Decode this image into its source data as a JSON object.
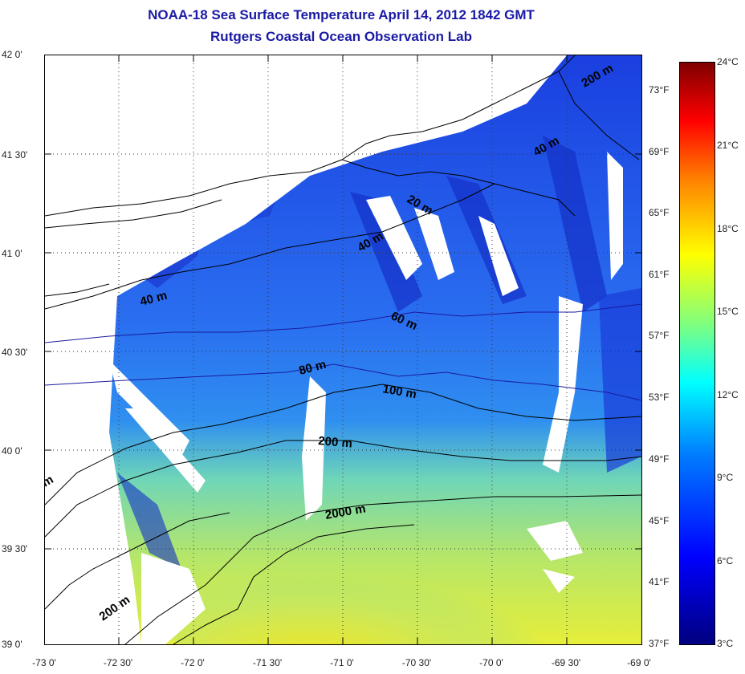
{
  "title": {
    "line1": "NOAA-18 Sea Surface Temperature April 14, 2012 1842 GMT",
    "line2": "Rutgers Coastal Ocean Observation Lab"
  },
  "lat_labels": [
    "42 0'",
    "41 30'",
    "41 0'",
    "40 30'",
    "40 0'",
    "39 30'",
    "39 0'"
  ],
  "lon_labels": [
    "-73 0'",
    "-72 30'",
    "-72 0'",
    "-71 30'",
    "-71 0'",
    "-70 30'",
    "-70 0'",
    "-69 30'",
    "-69 0'"
  ],
  "fahrenheit_labels": [
    "73°F",
    "69°F",
    "65°F",
    "61°F",
    "57°F",
    "53°F",
    "49°F",
    "45°F",
    "41°F",
    "37°F"
  ],
  "celsius_labels": [
    "24°C",
    "21°C",
    "18°C",
    "15°C",
    "12°C",
    "9°C",
    "6°C",
    "3°C"
  ],
  "contour_labels": {
    "m200_ne": "200 m",
    "m40_ne": "40 m",
    "m20": "20 m",
    "m40_c": "40 m",
    "m40_w": "40 m",
    "m60": "60 m",
    "m80": "80 m",
    "m100": "100 m",
    "m200_c": "200 m",
    "m2000": "2000 m",
    "m200_sw": "200 m",
    "m_edge": "m"
  },
  "colors": {
    "title": "#1a1aa6",
    "land": "#ffffff",
    "cold_water": "#1f4fe0",
    "warm_water": "#c8e84a"
  }
}
